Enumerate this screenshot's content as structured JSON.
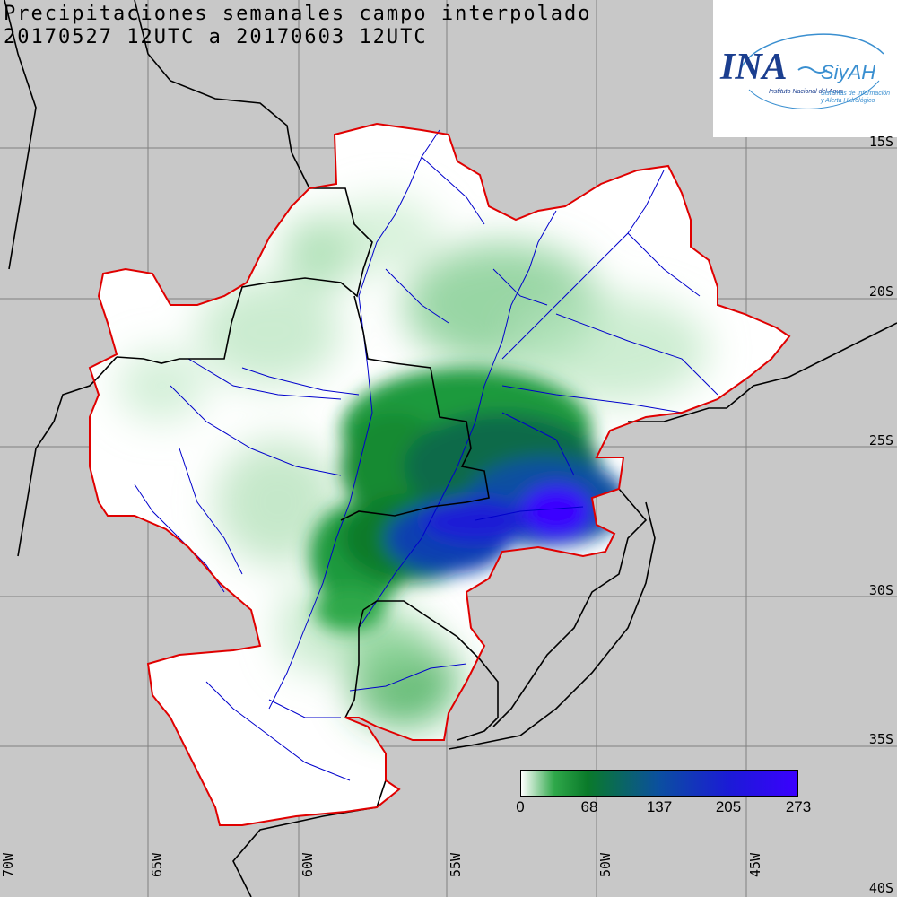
{
  "title": {
    "line1": "Precipitaciones semanales campo interpolado",
    "line2": "20170527 12UTC a 20170603 12UTC"
  },
  "logo": {
    "brand": "INA",
    "sub_brand": "SiyAH",
    "caption1": "Instituto Nacional del Agua",
    "caption2": "Sistemas de Información",
    "caption3": "y Alerta Hidrológico"
  },
  "lat_labels": [
    "15S",
    "20S",
    "25S",
    "30S",
    "35S",
    "40S"
  ],
  "lon_labels": [
    "70W",
    "65W",
    "60W",
    "55W",
    "50W",
    "45W"
  ],
  "legend": {
    "ticks": [
      "0",
      "68",
      "137",
      "205",
      "273"
    ],
    "colors": [
      "#ffffff",
      "#2fa84a",
      "#0a7a2a",
      "#0b4fa0",
      "#1b1bd6",
      "#3b00ff"
    ]
  },
  "colors": {
    "background": "#c8c8c8",
    "basin_outline": "#e00000",
    "rivers": "#0000cc",
    "borders": "#000000",
    "grid": "#808080"
  }
}
